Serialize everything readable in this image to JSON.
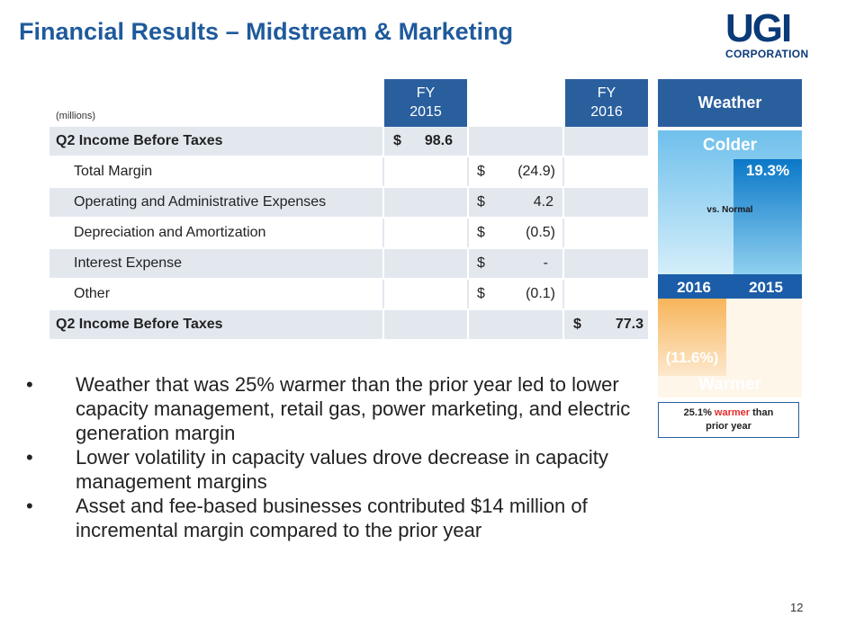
{
  "title": "Financial Results – Midstream & Marketing",
  "logo": {
    "line1": "UGI",
    "line2": "CORPORATION"
  },
  "table": {
    "units": "(millions)",
    "col_fy2015": [
      "FY",
      "2015"
    ],
    "col_fy2016": [
      "FY",
      "2016"
    ],
    "rows": [
      {
        "label": "Q2 Income Before Taxes",
        "bold": true,
        "shaded": true,
        "fy2015_cur": "$",
        "fy2015_amt": "98.6"
      },
      {
        "label": "Total Margin",
        "shaded": false,
        "chg_cur": "$",
        "chg_amt": "(24.9)"
      },
      {
        "label": "Operating and Administrative Expenses",
        "shaded": true,
        "chg_cur": "$",
        "chg_amt": "4.2"
      },
      {
        "label": "Depreciation and Amortization",
        "shaded": false,
        "chg_cur": "$",
        "chg_amt": "(0.5)"
      },
      {
        "label": "Interest Expense",
        "shaded": true,
        "chg_cur": "$",
        "chg_amt": "-"
      },
      {
        "label": "Other",
        "shaded": false,
        "chg_cur": "$",
        "chg_amt": "(0.1)"
      },
      {
        "label": "Q2 Income Before Taxes",
        "bold": true,
        "shaded": true,
        "fy2016_cur": "$",
        "fy2016_amt": "77.3"
      }
    ]
  },
  "weather": {
    "header": "Weather",
    "colder_label": "Colder",
    "warmer_label": "Warmer",
    "vs_normal": "vs. Normal",
    "year_2016": "2016",
    "year_2015": "2015",
    "value_2015": "19.3%",
    "value_2016": "(11.6%)",
    "note_prefix": "25.1%",
    "note_warm": "warmer",
    "note_suffix": " than",
    "note_line2": "prior year",
    "colors": {
      "cold_dark": "#0a78c8",
      "cold_light": "#8fd0f0",
      "warm": "#f5a33a",
      "bar_strip": "#1b5da8"
    }
  },
  "bullets": [
    "Weather that was 25% warmer than the prior year led to lower capacity management, retail gas, power marketing, and electric generation margin",
    "Lower volatility in capacity values drove decrease in capacity management margins",
    "Asset and fee-based businesses contributed $14 million of incremental margin compared to the prior year"
  ],
  "bullet_glyph": "•",
  "page_number": "12"
}
